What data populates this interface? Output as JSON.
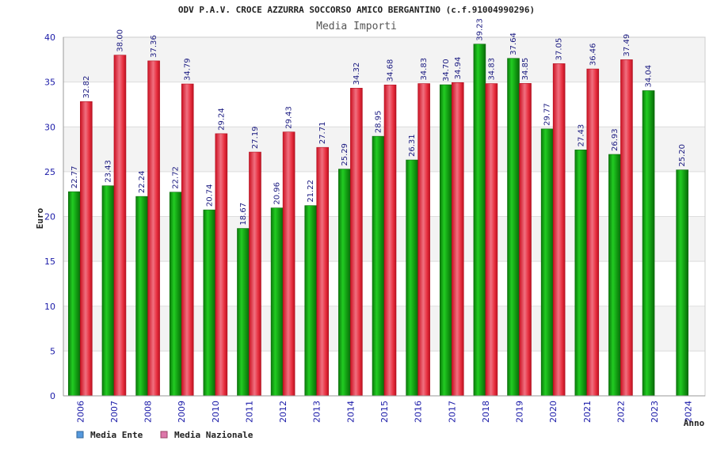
{
  "chart_data": {
    "type": "bar",
    "title": "ODV P.A.V. CROCE AZZURRA SOCCORSO AMICO BERGANTINO (c.f.91004990296)",
    "subtitle": "Media Importi",
    "xlabel": "Anno",
    "ylabel": "Euro",
    "ylim": [
      0,
      40
    ],
    "yticks": [
      0,
      5,
      10,
      15,
      20,
      25,
      30,
      35,
      40
    ],
    "categories": [
      "2006",
      "2007",
      "2008",
      "2009",
      "2010",
      "2011",
      "2012",
      "2013",
      "2014",
      "2015",
      "2016",
      "2017",
      "2018",
      "2019",
      "2020",
      "2021",
      "2022",
      "2023",
      "2024"
    ],
    "series": [
      {
        "name": "Media Ente",
        "color": "#22aa22",
        "legend_color": "#5599dd",
        "values": [
          22.77,
          23.43,
          22.24,
          22.72,
          20.74,
          18.67,
          20.96,
          21.22,
          25.29,
          28.95,
          26.31,
          34.7,
          39.23,
          37.64,
          29.77,
          27.43,
          26.93,
          34.04,
          25.2
        ],
        "labels": [
          "22.77",
          "23.43",
          "22.24",
          "22.72",
          "20.74",
          "18.67",
          "20.96",
          "21.22",
          "25.29",
          "28.95",
          "26.31",
          "34.70",
          "39.23",
          "37.64",
          "29.77",
          "27.43",
          "26.93",
          "34.04",
          "25.20"
        ]
      },
      {
        "name": "Media Nazionale",
        "color": "#ee3344",
        "legend_color": "#dd77aa",
        "values": [
          32.82,
          38.0,
          37.36,
          34.79,
          29.24,
          27.19,
          29.43,
          27.71,
          34.32,
          34.68,
          34.83,
          34.94,
          34.83,
          34.85,
          37.05,
          36.46,
          37.49,
          null,
          null
        ],
        "labels": [
          "32.82",
          "38.00",
          "37.36",
          "34.79",
          "29.24",
          "27.19",
          "29.43",
          "27.71",
          "34.32",
          "34.68",
          "34.83",
          "34.94",
          "34.83",
          "34.85",
          "37.05",
          "36.46",
          "37.49",
          null,
          null
        ]
      }
    ],
    "grid": true,
    "legend_position": "bottom-left"
  }
}
